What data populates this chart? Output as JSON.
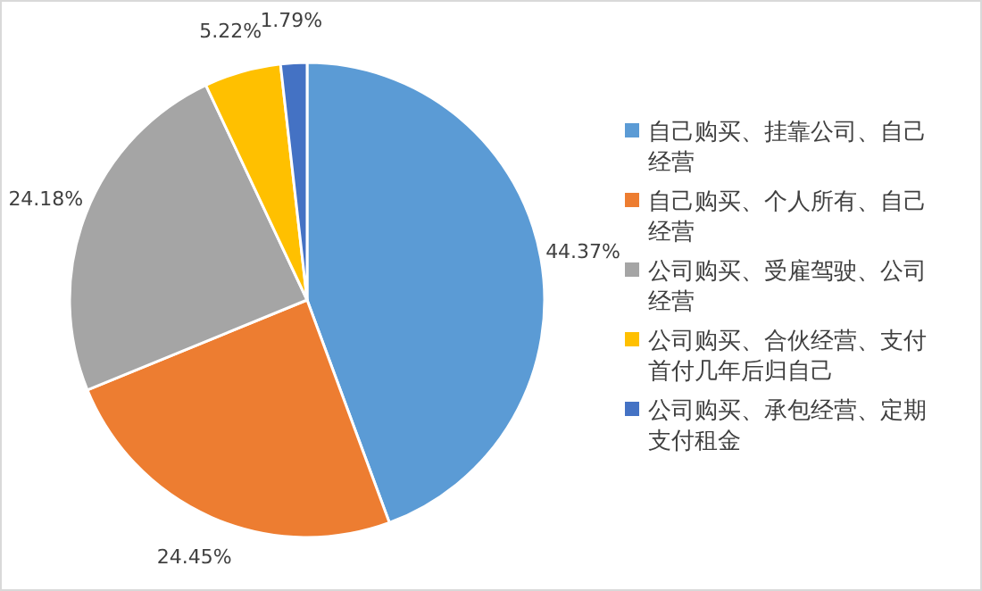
{
  "chart_data": {
    "type": "pie",
    "categories": [
      "自己购买、挂靠公司、自己经营",
      "自己购买、个人所有、自己经营",
      "公司购买、受雇驾驶、公司经营",
      "公司购买、合伙经营、支付首付几年后归自己",
      "公司购买、承包经营、定期支付租金"
    ],
    "values": [
      44.37,
      24.45,
      24.18,
      5.22,
      1.79
    ],
    "colors": [
      "#5b9bd5",
      "#ed7d31",
      "#a5a5a5",
      "#ffc000",
      "#4472c4"
    ],
    "value_labels": [
      "44.37%",
      "24.45%",
      "24.18%",
      "5.22%",
      "1.79%"
    ],
    "legend": "right"
  }
}
